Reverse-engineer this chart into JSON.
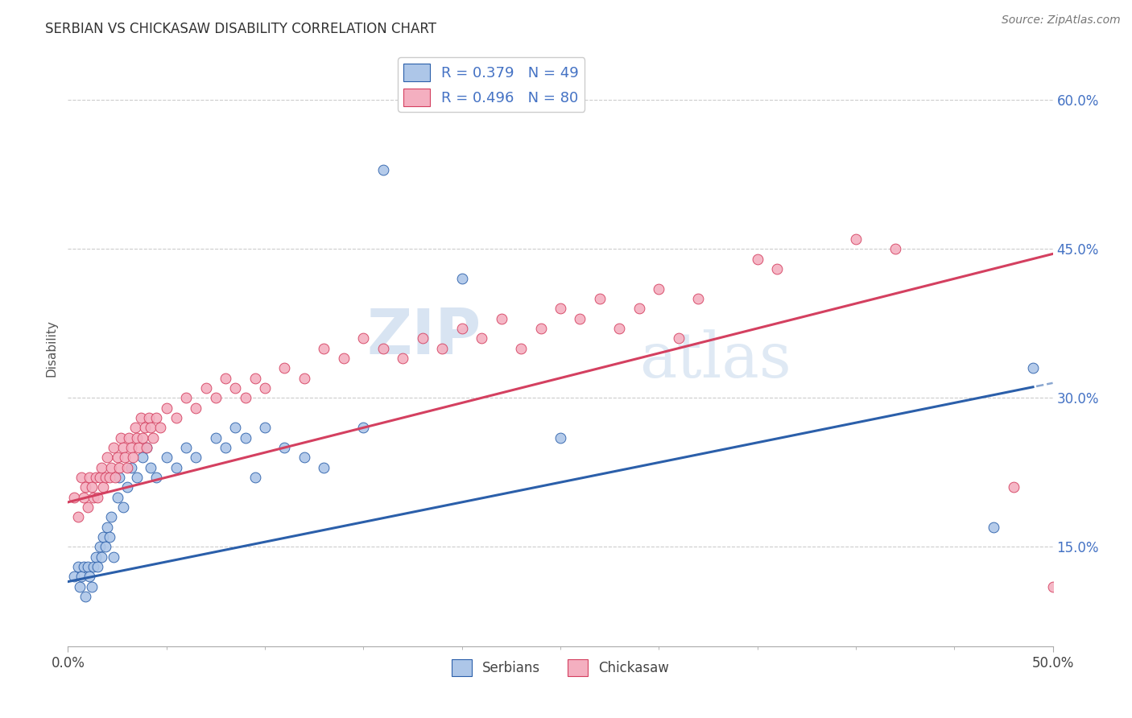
{
  "title": "SERBIAN VS CHICKASAW DISABILITY CORRELATION CHART",
  "source": "Source: ZipAtlas.com",
  "ylabel_label": "Disability",
  "x_min": 0.0,
  "x_max": 0.5,
  "y_min": 0.05,
  "y_max": 0.65,
  "x_tick_labels": [
    "0.0%",
    "50.0%"
  ],
  "x_tick_positions": [
    0.0,
    0.5
  ],
  "y_ticks": [
    0.15,
    0.3,
    0.45,
    0.6
  ],
  "y_tick_labels": [
    "15.0%",
    "30.0%",
    "45.0%",
    "60.0%"
  ],
  "serbian_color": "#adc6e8",
  "chickasaw_color": "#f4afc0",
  "serbian_line_color": "#2b5faa",
  "chickasaw_line_color": "#d44060",
  "serbian_R": 0.379,
  "serbian_N": 49,
  "chickasaw_R": 0.496,
  "chickasaw_N": 80,
  "legend_label_serbian": "Serbians",
  "legend_label_chickasaw": "Chickasaw",
  "watermark_zip": "ZIP",
  "watermark_atlas": "atlas",
  "grid_color": "#cccccc",
  "serbian_x": [
    0.003,
    0.005,
    0.006,
    0.007,
    0.008,
    0.009,
    0.01,
    0.011,
    0.012,
    0.013,
    0.014,
    0.015,
    0.016,
    0.017,
    0.018,
    0.019,
    0.02,
    0.021,
    0.022,
    0.023,
    0.025,
    0.026,
    0.028,
    0.03,
    0.032,
    0.035,
    0.038,
    0.04,
    0.042,
    0.045,
    0.05,
    0.055,
    0.06,
    0.065,
    0.075,
    0.08,
    0.085,
    0.09,
    0.095,
    0.1,
    0.11,
    0.12,
    0.13,
    0.15,
    0.16,
    0.2,
    0.25,
    0.47,
    0.49
  ],
  "serbian_y": [
    0.12,
    0.13,
    0.11,
    0.12,
    0.13,
    0.1,
    0.13,
    0.12,
    0.11,
    0.13,
    0.14,
    0.13,
    0.15,
    0.14,
    0.16,
    0.15,
    0.17,
    0.16,
    0.18,
    0.14,
    0.2,
    0.22,
    0.19,
    0.21,
    0.23,
    0.22,
    0.24,
    0.25,
    0.23,
    0.22,
    0.24,
    0.23,
    0.25,
    0.24,
    0.26,
    0.25,
    0.27,
    0.26,
    0.22,
    0.27,
    0.25,
    0.24,
    0.23,
    0.27,
    0.53,
    0.42,
    0.26,
    0.17,
    0.33
  ],
  "chickasaw_x": [
    0.003,
    0.005,
    0.007,
    0.008,
    0.009,
    0.01,
    0.011,
    0.012,
    0.013,
    0.014,
    0.015,
    0.016,
    0.017,
    0.018,
    0.019,
    0.02,
    0.021,
    0.022,
    0.023,
    0.024,
    0.025,
    0.026,
    0.027,
    0.028,
    0.029,
    0.03,
    0.031,
    0.032,
    0.033,
    0.034,
    0.035,
    0.036,
    0.037,
    0.038,
    0.039,
    0.04,
    0.041,
    0.042,
    0.043,
    0.045,
    0.047,
    0.05,
    0.055,
    0.06,
    0.065,
    0.07,
    0.075,
    0.08,
    0.085,
    0.09,
    0.095,
    0.1,
    0.11,
    0.12,
    0.13,
    0.14,
    0.15,
    0.16,
    0.17,
    0.18,
    0.19,
    0.2,
    0.21,
    0.22,
    0.23,
    0.24,
    0.25,
    0.26,
    0.27,
    0.28,
    0.29,
    0.3,
    0.31,
    0.32,
    0.35,
    0.36,
    0.4,
    0.42,
    0.48,
    0.5
  ],
  "chickasaw_y": [
    0.2,
    0.18,
    0.22,
    0.2,
    0.21,
    0.19,
    0.22,
    0.21,
    0.2,
    0.22,
    0.2,
    0.22,
    0.23,
    0.21,
    0.22,
    0.24,
    0.22,
    0.23,
    0.25,
    0.22,
    0.24,
    0.23,
    0.26,
    0.25,
    0.24,
    0.23,
    0.26,
    0.25,
    0.24,
    0.27,
    0.26,
    0.25,
    0.28,
    0.26,
    0.27,
    0.25,
    0.28,
    0.27,
    0.26,
    0.28,
    0.27,
    0.29,
    0.28,
    0.3,
    0.29,
    0.31,
    0.3,
    0.32,
    0.31,
    0.3,
    0.32,
    0.31,
    0.33,
    0.32,
    0.35,
    0.34,
    0.36,
    0.35,
    0.34,
    0.36,
    0.35,
    0.37,
    0.36,
    0.38,
    0.35,
    0.37,
    0.39,
    0.38,
    0.4,
    0.37,
    0.39,
    0.41,
    0.36,
    0.4,
    0.44,
    0.43,
    0.46,
    0.45,
    0.21,
    0.11
  ],
  "serbian_intercept": 0.115,
  "serbian_slope": 0.4,
  "chickasaw_intercept": 0.195,
  "chickasaw_slope": 0.5
}
